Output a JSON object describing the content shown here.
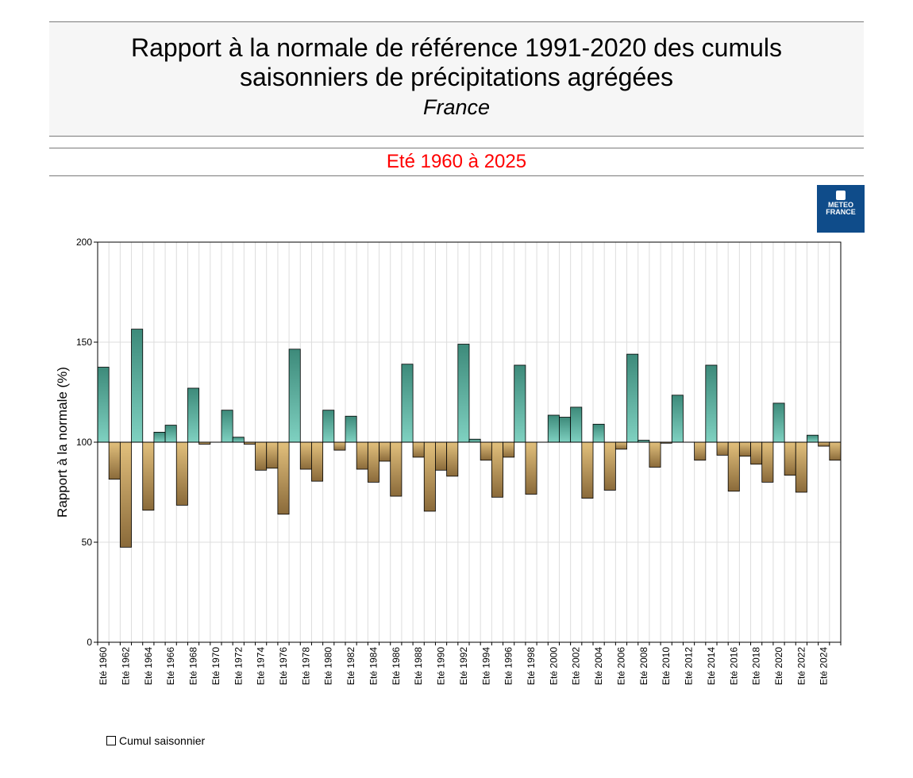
{
  "header": {
    "title_line1": "Rapport à la normale de référence 1991-2020 des cumuls",
    "title_line2": "saisonniers de précipitations agrégées",
    "region": "France",
    "period": "Eté 1960 à 2025"
  },
  "logo": {
    "name_line1": "METEO",
    "name_line2": "FRANCE",
    "bg_color": "#0f4c8a"
  },
  "colors": {
    "period_text": "#ff0000",
    "above_normal_top": "#3d8a7a",
    "above_normal_bottom": "#7fd1c1",
    "below_normal_top": "#e2c07c",
    "below_normal_bottom": "#8a6a3a",
    "grid": "#dddddd"
  },
  "legend": {
    "label": "Cumul saisonnier"
  },
  "chart_data": {
    "type": "bar",
    "ylabel": "Rapport à la normale (%)",
    "xlabel": "",
    "ylim": [
      0,
      200
    ],
    "yticks": [
      0,
      50,
      100,
      150,
      200
    ],
    "baseline": 100,
    "grid": true,
    "categories": [
      "Eté 1960",
      "Eté 1961",
      "Eté 1962",
      "Eté 1963",
      "Eté 1964",
      "Eté 1965",
      "Eté 1966",
      "Eté 1967",
      "Eté 1968",
      "Eté 1969",
      "Eté 1970",
      "Eté 1971",
      "Eté 1972",
      "Eté 1973",
      "Eté 1974",
      "Eté 1975",
      "Eté 1976",
      "Eté 1977",
      "Eté 1978",
      "Eté 1979",
      "Eté 1980",
      "Eté 1981",
      "Eté 1982",
      "Eté 1983",
      "Eté 1984",
      "Eté 1985",
      "Eté 1986",
      "Eté 1987",
      "Eté 1988",
      "Eté 1989",
      "Eté 1990",
      "Eté 1991",
      "Eté 1992",
      "Eté 1993",
      "Eté 1994",
      "Eté 1995",
      "Eté 1996",
      "Eté 1997",
      "Eté 1998",
      "Eté 1999",
      "Eté 2000",
      "Eté 2001",
      "Eté 2002",
      "Eté 2003",
      "Eté 2004",
      "Eté 2005",
      "Eté 2006",
      "Eté 2007",
      "Eté 2008",
      "Eté 2009",
      "Eté 2010",
      "Eté 2011",
      "Eté 2012",
      "Eté 2013",
      "Eté 2014",
      "Eté 2015",
      "Eté 2016",
      "Eté 2017",
      "Eté 2018",
      "Eté 2019",
      "Eté 2020",
      "Eté 2021",
      "Eté 2022",
      "Eté 2023",
      "Eté 2024",
      "Eté 2025"
    ],
    "tick_labels": [
      "Eté 1960",
      "Eté 1962",
      "Eté 1964",
      "Eté 1966",
      "Eté 1968",
      "Eté 1970",
      "Eté 1972",
      "Eté 1974",
      "Eté 1976",
      "Eté 1978",
      "Eté 1980",
      "Eté 1982",
      "Eté 1984",
      "Eté 1986",
      "Eté 1988",
      "Eté 1990",
      "Eté 1992",
      "Eté 1994",
      "Eté 1996",
      "Eté 1998",
      "Eté 2000",
      "Eté 2002",
      "Eté 2004",
      "Eté 2006",
      "Eté 2008",
      "Eté 2010",
      "Eté 2012",
      "Eté 2014",
      "Eté 2016",
      "Eté 2018",
      "Eté 2020",
      "Eté 2022",
      "Eté 2024"
    ],
    "series": [
      {
        "name": "Cumul saisonnier",
        "values": [
          137.5,
          81.5,
          47.5,
          156.5,
          66,
          105,
          108.5,
          68.5,
          127,
          99,
          100,
          116,
          102.5,
          99,
          86,
          87,
          64,
          146.5,
          86.5,
          80.5,
          116,
          96,
          113,
          86.5,
          80,
          90.5,
          73,
          139,
          92.5,
          65.5,
          86,
          83,
          149,
          101.5,
          91,
          72.5,
          92.5,
          138.5,
          74,
          100,
          113.5,
          112.5,
          117.5,
          72,
          109,
          76,
          96.5,
          144,
          101,
          87.5,
          99.5,
          123.5,
          100,
          91,
          138.5,
          93.5,
          75.5,
          93,
          89,
          80,
          119.5,
          83.5,
          75,
          103.5,
          98,
          91
        ]
      }
    ]
  }
}
